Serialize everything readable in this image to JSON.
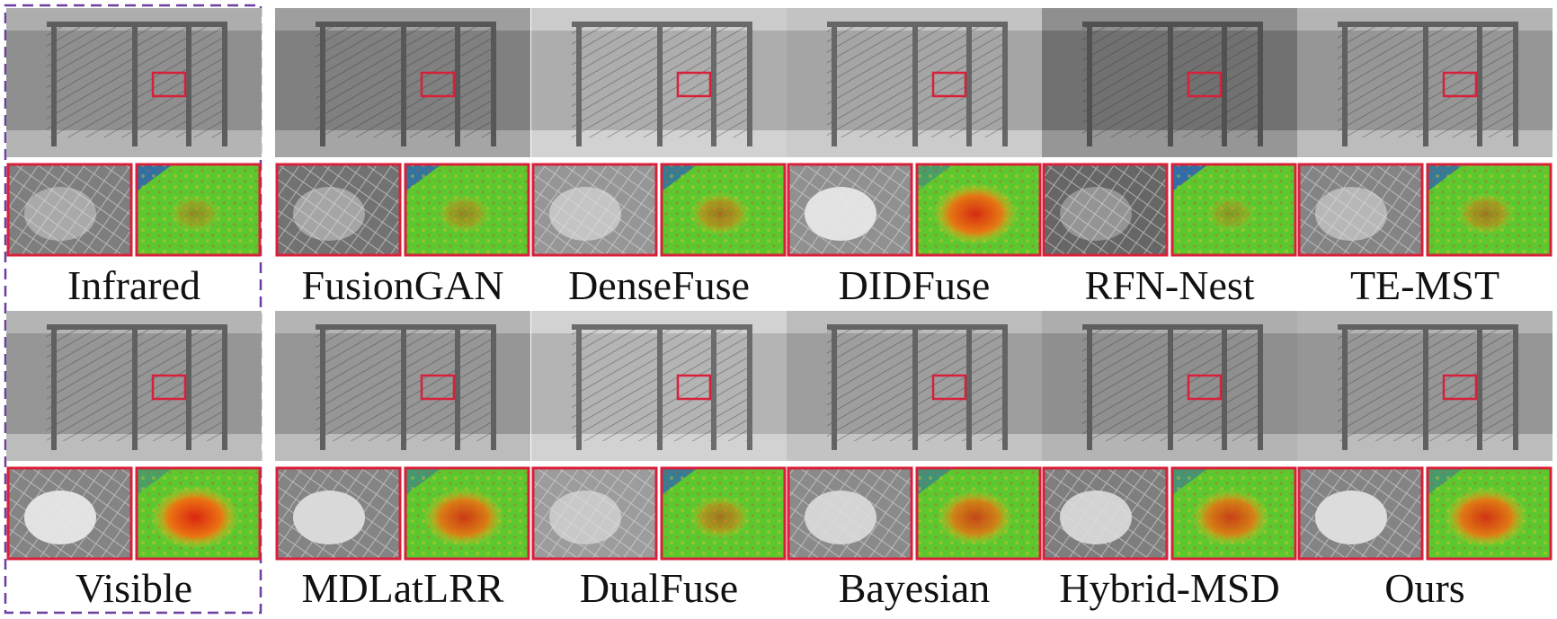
{
  "rows": [
    [
      "Infrared",
      "FusionGAN",
      "DenseFuse",
      "DIDFuse",
      "RFN-Nest",
      "TE-MST"
    ],
    [
      "Visible",
      "MDLatLRR",
      "DualFuse",
      "Bayesian",
      "Hybrid-MSD",
      "Ours"
    ]
  ]
}
